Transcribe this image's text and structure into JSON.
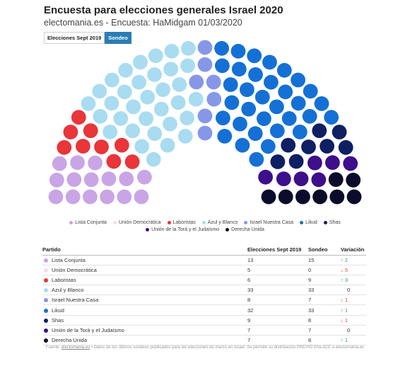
{
  "header": {
    "title": "Encuesta para elecciones generales Israel 2020",
    "subtitle": "electomania.es - Encuesta: HaMidgam 01/03/2020"
  },
  "toggles": {
    "option_a": "Elecciones Sept 2019",
    "option_b": "Sondeo",
    "active": "Sondeo"
  },
  "table": {
    "col_party": "Partido",
    "col_prev": "Elecciones Sept 2019",
    "col_poll": "Sondeo",
    "col_var": "Variación"
  },
  "chart_data": {
    "type": "parliament",
    "total_seats": 120,
    "parties": [
      {
        "name": "Lista Conjunta",
        "color": "#c9a5e6",
        "prev": "13",
        "poll": "15",
        "var": "2",
        "dir": "up"
      },
      {
        "name": "Unión Democrática",
        "color": "#f6dcef",
        "prev": "5",
        "poll": "0",
        "var": "5",
        "dir": "down"
      },
      {
        "name": "Laboristas",
        "color": "#e8363a",
        "prev": "6",
        "poll": "9",
        "var": "3",
        "dir": "up"
      },
      {
        "name": "Azul y Blanco",
        "color": "#a9dcf1",
        "prev": "33",
        "poll": "33",
        "var": "0",
        "dir": "none"
      },
      {
        "name": "Israel Nuestra Casa",
        "color": "#8797e8",
        "prev": "8",
        "poll": "7",
        "var": "1",
        "dir": "down"
      },
      {
        "name": "Likud",
        "color": "#1570d6",
        "prev": "32",
        "poll": "33",
        "var": "1",
        "dir": "up"
      },
      {
        "name": "Shas",
        "color": "#0f1f63",
        "prev": "9",
        "poll": "8",
        "var": "1",
        "dir": "down"
      },
      {
        "name": "Unión de la Torá y el Judaísmo",
        "color": "#3d0f8a",
        "prev": "7",
        "poll": "7",
        "var": "0",
        "dir": "none"
      },
      {
        "name": "Derecha Unida",
        "color": "#0b0b2a",
        "prev": "7",
        "poll": "8",
        "var": "1",
        "dir": "up"
      }
    ]
  },
  "footer": {
    "prefix": "Fuente: ",
    "link": "electomania.es",
    "text": " • Datos de los últimos sondeos publicados para las elecciones de marzo en Israel. Se permite su distribución PREVIO ENLACE a electomania.es"
  }
}
